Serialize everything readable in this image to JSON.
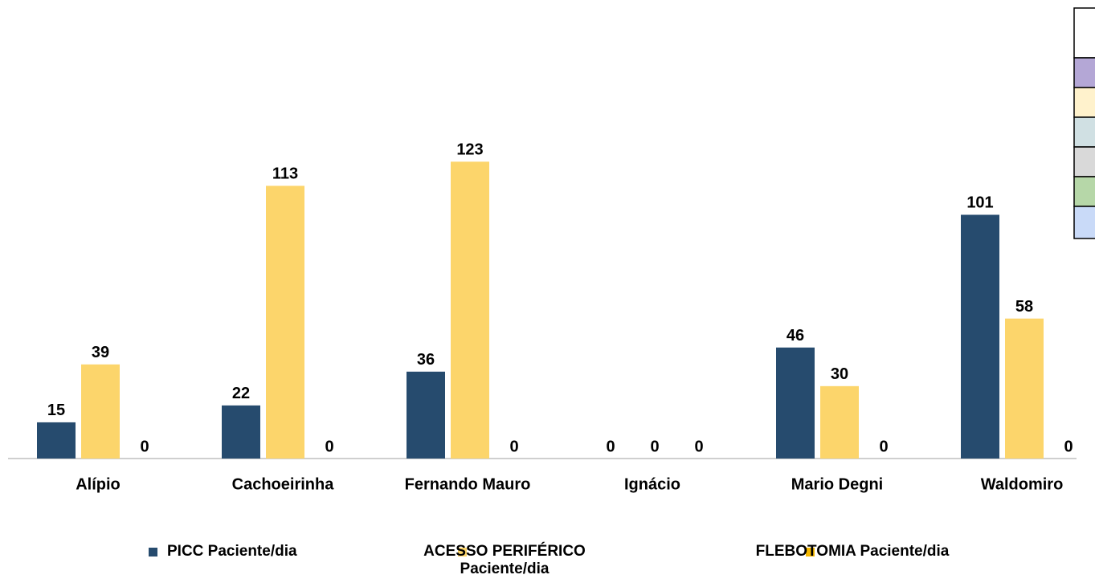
{
  "chart_data": {
    "type": "bar",
    "categories": [
      "Alípio",
      "Cachoeirinha",
      "Fernando Mauro",
      "Ignácio",
      "Mario Degni",
      "Waldomiro"
    ],
    "series": [
      {
        "name": "PICC Paciente/dia",
        "color": "#264b6e",
        "values": [
          15,
          22,
          36,
          0,
          46,
          101
        ]
      },
      {
        "name": "ACESSO PERIFÉRICO Paciente/dia",
        "color": "#fcd56b",
        "values": [
          39,
          113,
          123,
          0,
          30,
          58
        ]
      },
      {
        "name": "FLEBOTOMIA Paciente/dia",
        "color": "#f5b800",
        "values": [
          0,
          0,
          0,
          0,
          0,
          0
        ]
      }
    ],
    "ylim": [
      0,
      190
    ]
  }
}
